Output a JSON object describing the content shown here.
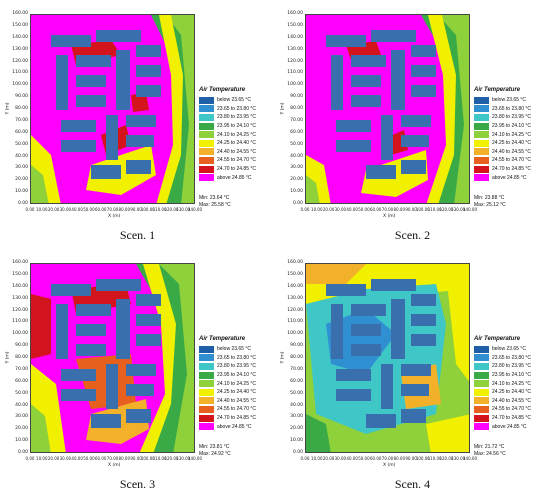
{
  "legend_title": "Air Temperature",
  "legend_items": [
    {
      "label": "below 23.65 °C",
      "color": "#1f5fa8"
    },
    {
      "label": "23.65 to 23.80 °C",
      "color": "#2f8fd0"
    },
    {
      "label": "23.80 to 23.95 °C",
      "color": "#3fc7c7"
    },
    {
      "label": "23.95 to 24.10 °C",
      "color": "#3aaa46"
    },
    {
      "label": "24.10 to 24.25 °C",
      "color": "#8fd13a"
    },
    {
      "label": "24.25 to 24.40 °C",
      "color": "#f0f000"
    },
    {
      "label": "24.40 to 24.55 °C",
      "color": "#f3b12a"
    },
    {
      "label": "24.55 to 24.70 °C",
      "color": "#e8601e"
    },
    {
      "label": "24.70 to 24.85 °C",
      "color": "#d4141c"
    },
    {
      "label": "above 24.85 °C",
      "color": "#ff00ff"
    }
  ],
  "building_color": "#3a6fae",
  "y_axis_label": "Y (m)",
  "x_axis_label": "X (m)",
  "y_ticks": [
    "160.00",
    "150.00",
    "140.00",
    "130.00",
    "120.00",
    "110.00",
    "100.00",
    "90.00",
    "80.00",
    "70.00",
    "60.00",
    "50.00",
    "40.00",
    "30.00",
    "20.00",
    "10.00",
    "0.00"
  ],
  "x_ticks": [
    "0.00",
    "10.00",
    "20.00",
    "30.00",
    "40.00",
    "50.00",
    "60.00",
    "70.00",
    "80.00",
    "90.00",
    "100.00",
    "110.00",
    "120.00",
    "130.00",
    "140.00"
  ],
  "panels": [
    {
      "caption": "Scen. 1",
      "min": "Min: 23.64 °C",
      "max": "Max: 25.58 °C"
    },
    {
      "caption": "Scen. 2",
      "min": "Min: 23.88 °C",
      "max": "Max: 25.12 °C"
    },
    {
      "caption": "Scen. 3",
      "min": "Min: 23.81 °C",
      "max": "Max: 24.92 °C"
    },
    {
      "caption": "Scen. 4",
      "min": "Min: 21.72 °C",
      "max": "Max: 24.56 °C"
    }
  ]
}
